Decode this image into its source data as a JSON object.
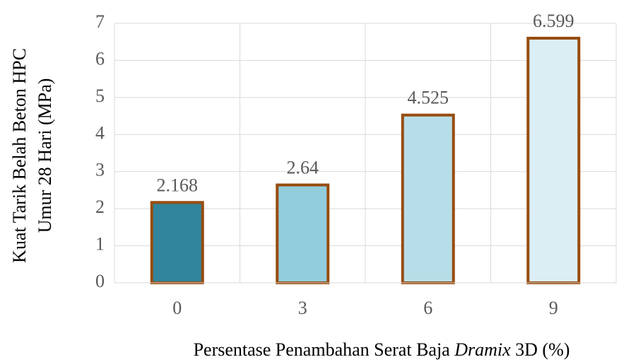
{
  "chart_data": {
    "type": "bar",
    "categories": [
      "0",
      "3",
      "6",
      "9"
    ],
    "values": [
      2.168,
      2.64,
      4.525,
      6.599
    ],
    "colors": [
      "#31859c",
      "#92cddc",
      "#b7dee8",
      "#dbeef4"
    ],
    "edge_color": "#974c0f",
    "ylim": [
      0,
      7
    ],
    "yticks": [
      0,
      1,
      2,
      3,
      4,
      5,
      6,
      7
    ],
    "grid": true,
    "y_label": [
      "Kuat Tarik Belah Beton HPC",
      "Umur 28 Hari (MPa)"
    ],
    "x_label": [
      "Persentase Penambahan Serat Baja",
      "Dramix",
      "3D (%)"
    ]
  }
}
